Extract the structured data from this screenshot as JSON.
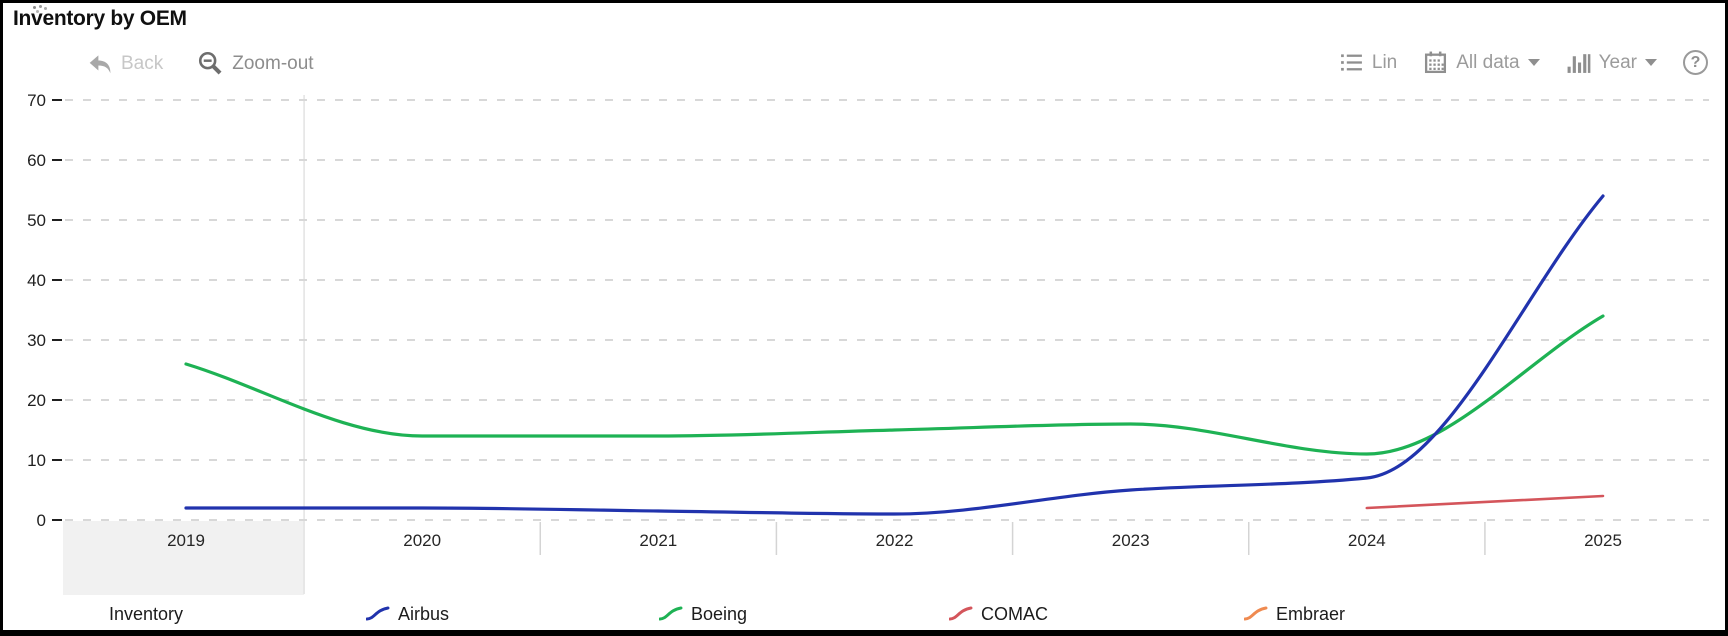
{
  "title": "Inventory by OEM",
  "toolbar": {
    "back_label": "Back",
    "zoom_out_label": "Zoom-out",
    "lin_label": "Lin",
    "all_data_label": "All data",
    "year_label": "Year",
    "help_label": "?"
  },
  "legend": {
    "title": "Inventory",
    "items": [
      {
        "label": "Airbus",
        "color": "#2133ad"
      },
      {
        "label": "Boeing",
        "color": "#1eb254"
      },
      {
        "label": "COMAC",
        "color": "#d4555b"
      },
      {
        "label": "Embraer",
        "color": "#ef8a50"
      }
    ]
  },
  "chart_data": {
    "type": "line",
    "title": "Inventory by OEM",
    "x": [
      2019,
      2020,
      2021,
      2022,
      2023,
      2024,
      2025
    ],
    "xlabel": "",
    "ylabel": "",
    "ylim": [
      0,
      70
    ],
    "yticks": [
      0,
      10,
      20,
      30,
      40,
      50,
      60,
      70
    ],
    "grid": "horizontal-dashed",
    "legend_position": "bottom",
    "highlighted_x_band": "2019",
    "series": [
      {
        "name": "Airbus",
        "color": "#2133ad",
        "values": [
          2,
          2,
          1.5,
          1,
          5,
          7,
          54
        ]
      },
      {
        "name": "Boeing",
        "color": "#1eb254",
        "values": [
          26,
          14,
          14,
          15,
          16,
          11,
          34
        ]
      },
      {
        "name": "COMAC",
        "color": "#d4555b",
        "values": [
          null,
          null,
          null,
          null,
          null,
          2,
          4
        ]
      },
      {
        "name": "Embraer",
        "color": "#ef8a50",
        "values": [
          null,
          null,
          null,
          null,
          null,
          null,
          null
        ]
      }
    ]
  }
}
